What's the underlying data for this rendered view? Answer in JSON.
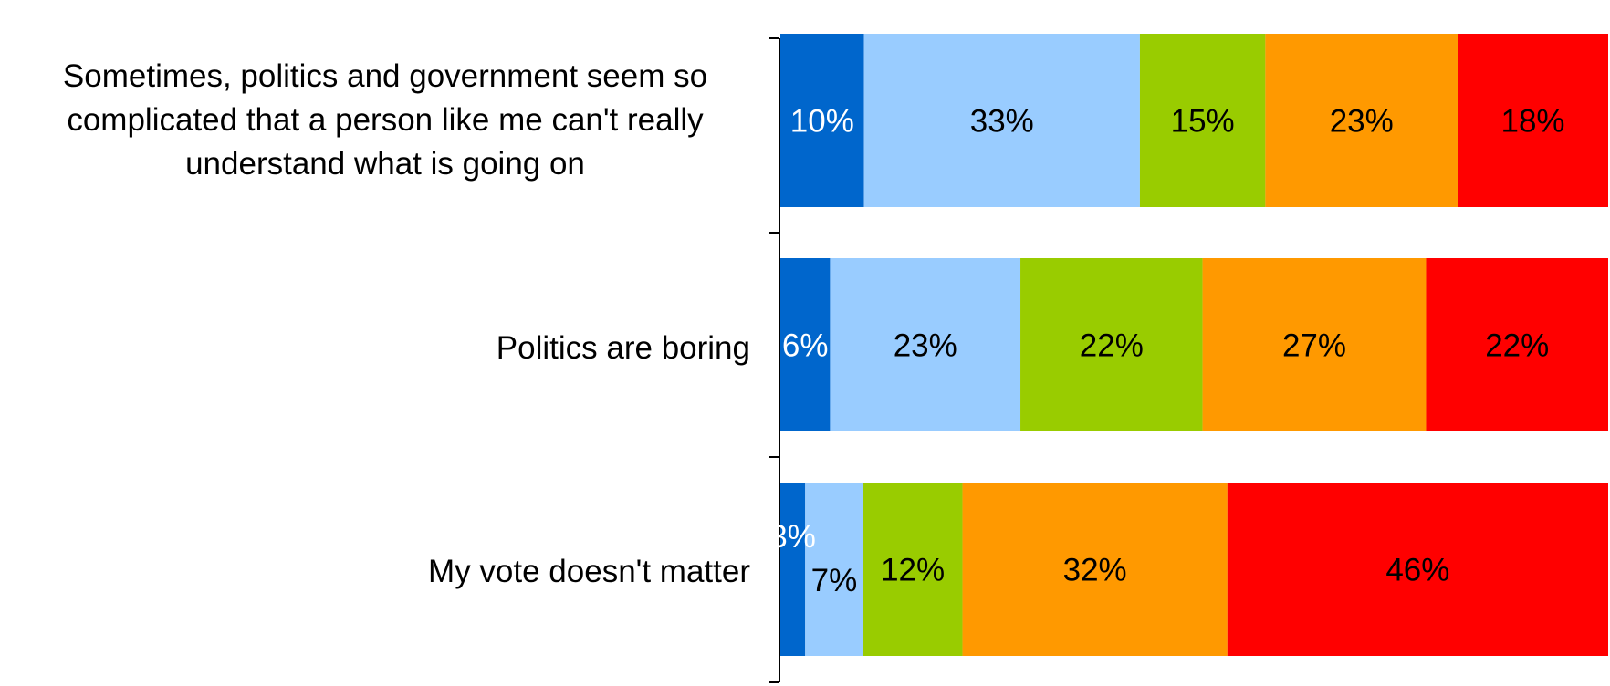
{
  "chart_data": {
    "type": "bar",
    "orientation": "horizontal",
    "stacked": true,
    "categories": [
      "Sometimes, politics and government seem so complicated that a person like me can't really understand what is going on",
      "Politics are boring",
      "My vote doesn't matter"
    ],
    "series": [
      {
        "values": [
          10,
          6,
          3
        ],
        "labels": [
          "10%",
          "6%",
          "3%"
        ]
      },
      {
        "values": [
          33,
          23,
          7
        ],
        "labels": [
          "33%",
          "23%",
          "7%"
        ]
      },
      {
        "values": [
          15,
          22,
          12
        ],
        "labels": [
          "15%",
          "22%",
          "12%"
        ]
      },
      {
        "values": [
          23,
          27,
          32
        ],
        "labels": [
          "23%",
          "27%",
          "32%"
        ]
      },
      {
        "values": [
          18,
          22,
          46
        ],
        "labels": [
          "18%",
          "22%",
          "46%"
        ]
      }
    ],
    "colors": [
      "#0066cc",
      "#99ccff",
      "#99cc00",
      "#ff9900",
      "#ff0000"
    ],
    "label_colors": [
      "#ffffff",
      "#000000",
      "#000000",
      "#000000",
      "#000000"
    ],
    "xlim": [
      0,
      100
    ],
    "grid": false,
    "legend": false
  }
}
